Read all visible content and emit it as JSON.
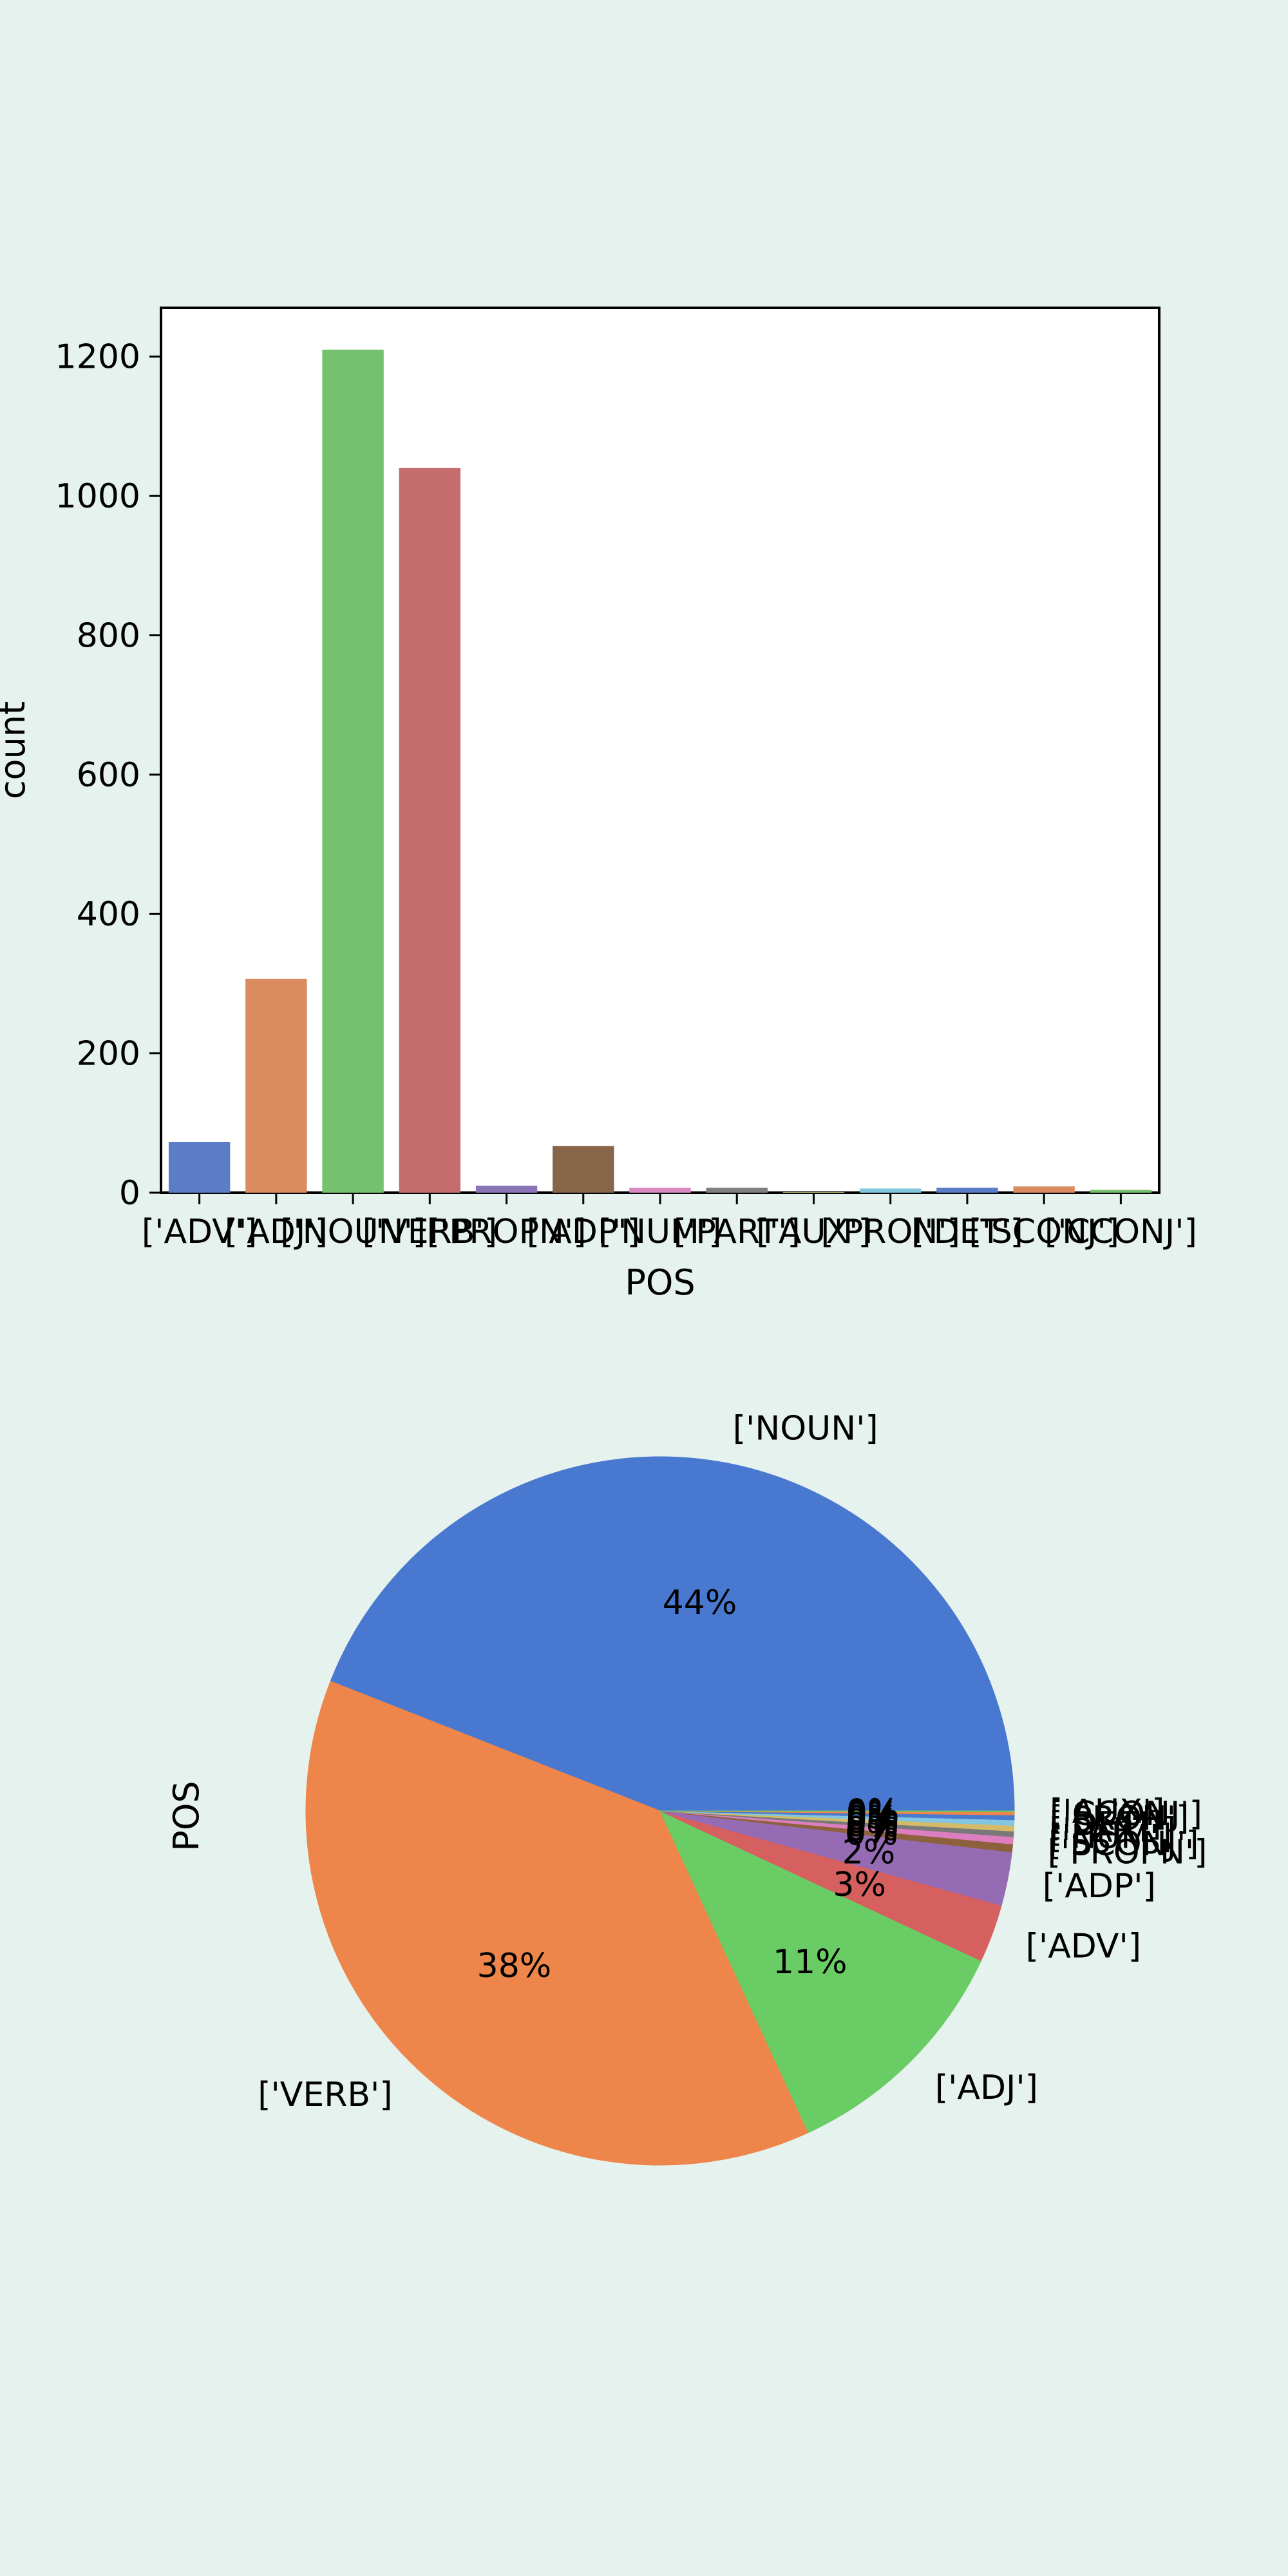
{
  "chart_data": [
    {
      "type": "bar",
      "categories": [
        "['ADV']",
        "['ADJ']",
        "['NOUN']",
        "['VERB']",
        "['PROPN']",
        "['ADP']",
        "['NUM']",
        "['PART']",
        "['AUX']",
        "['PRON']",
        "['DET']",
        "['SCONJ']",
        "['CCONJ']"
      ],
      "values": [
        73,
        307,
        1210,
        1040,
        10,
        67,
        7,
        7,
        1,
        6,
        7,
        9,
        4
      ],
      "xlabel": "POS",
      "ylabel": "count",
      "ylim": [
        0,
        1270
      ],
      "yticks": [
        0,
        200,
        400,
        600,
        800,
        1000,
        1200
      ],
      "grid": false,
      "colors": [
        "#5b7cc7",
        "#da8b5f",
        "#75c16d",
        "#c56c6c",
        "#8a74b5",
        "#876548",
        "#d889c2",
        "#7f7f7f",
        "#c9c76f",
        "#7fc6dc",
        "#5b7cc7",
        "#da8b5f",
        "#75c16d"
      ]
    },
    {
      "type": "pie",
      "ylabel": "POS",
      "slices": [
        {
          "label": "['NOUN']",
          "value": 1210,
          "pct": "44%",
          "color": "#4878cf"
        },
        {
          "label": "['VERB']",
          "value": 1040,
          "pct": "38%",
          "color": "#ee854a"
        },
        {
          "label": "['ADJ']",
          "value": 307,
          "pct": "11%",
          "color": "#6acc64"
        },
        {
          "label": "['ADV']",
          "value": 73,
          "pct": "3%",
          "color": "#d65f5f"
        },
        {
          "label": "['ADP']",
          "value": 67,
          "pct": "2%",
          "color": "#956cb4"
        },
        {
          "label": "['PROPN']",
          "value": 10,
          "pct": "0%",
          "color": "#8c613c"
        },
        {
          "label": "['SCONJ']",
          "value": 9,
          "pct": "0%",
          "color": "#dc7ec0"
        },
        {
          "label": "['NUM']",
          "value": 7,
          "pct": "0%",
          "color": "#797979"
        },
        {
          "label": "['PART']",
          "value": 7,
          "pct": "0%",
          "color": "#d5bb67"
        },
        {
          "label": "['DET']",
          "value": 7,
          "pct": "0%",
          "color": "#82c6e2"
        },
        {
          "label": "['PRON']",
          "value": 6,
          "pct": "0%",
          "color": "#4878cf"
        },
        {
          "label": "['CCONJ']",
          "value": 4,
          "pct": "0%",
          "color": "#ee854a"
        },
        {
          "label": "['AUX']",
          "value": 1,
          "pct": "0%",
          "color": "#6acc64"
        }
      ]
    }
  ]
}
